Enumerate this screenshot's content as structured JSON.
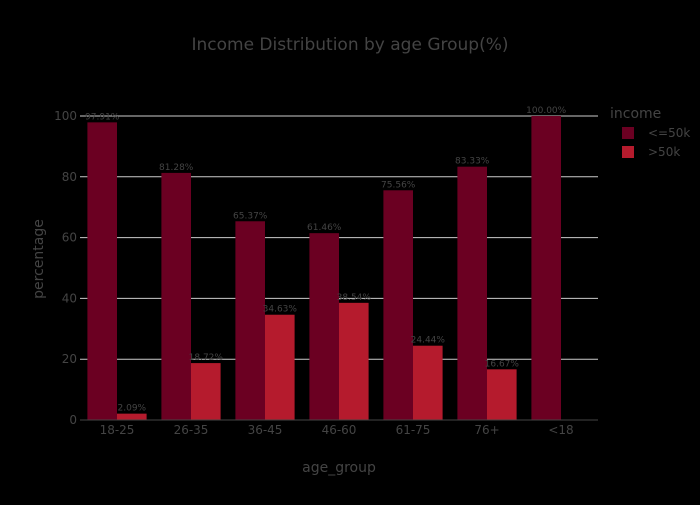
{
  "chart_data": {
    "type": "bar",
    "title": "Income Distribution by age Group(%)",
    "xlabel": "age_group",
    "ylabel": "percentage",
    "categories": [
      "18-25",
      "26-35",
      "36-45",
      "46-60",
      "61-75",
      "76+",
      "<18"
    ],
    "ylim": [
      0,
      100
    ],
    "yticks": [
      0,
      20,
      40,
      60,
      80,
      100
    ],
    "grid": true,
    "legend": {
      "title": "income",
      "position": "top-right"
    },
    "series": [
      {
        "name": "<=50k",
        "color": "#6b0022",
        "values": [
          97.91,
          81.28,
          65.37,
          61.46,
          75.56,
          83.33,
          100.0
        ],
        "labels": [
          "97.91%",
          "81.28%",
          "65.37%",
          "61.46%",
          "75.56%",
          "83.33%",
          "100.00%"
        ]
      },
      {
        "name": ">50k",
        "color": "#b51b2d",
        "values": [
          2.09,
          18.72,
          34.63,
          38.54,
          24.44,
          16.67,
          null
        ],
        "labels": [
          "2.09%",
          "18.72%",
          "34.63%",
          "38.54%",
          "24.44%",
          "16.67%",
          ""
        ]
      }
    ]
  }
}
